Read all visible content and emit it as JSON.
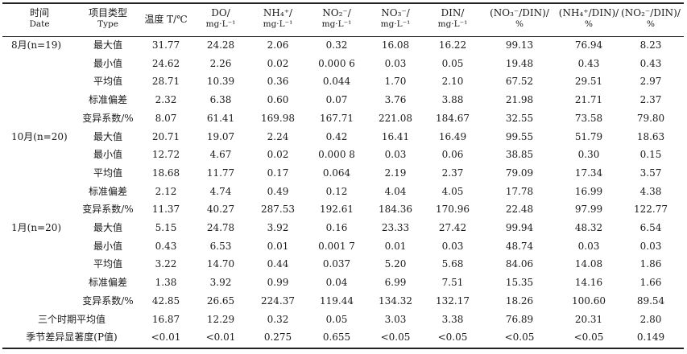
{
  "headers": [
    {
      "line1": "时间",
      "line2": "Date"
    },
    {
      "line1": "项目类型",
      "line2": "Type"
    },
    {
      "line1": "温度 T/℃",
      "line2": ""
    },
    {
      "line1": "DO/",
      "line2": "mg·L⁻¹"
    },
    {
      "line1": "NH₄⁺/",
      "line2": "mg·L⁻¹"
    },
    {
      "line1": "NO₂⁻/",
      "line2": "mg·L⁻¹"
    },
    {
      "line1": "NO₃⁻/",
      "line2": "mg·L⁻¹"
    },
    {
      "line1": "DIN/",
      "line2": "mg·L⁻¹"
    },
    {
      "line1": "(NO₃⁻/DIN)/",
      "line2": "%"
    },
    {
      "line1": "(NH₄⁺/DIN)/",
      "line2": "%"
    },
    {
      "line1": "(NO₂⁻/DIN)/",
      "line2": "%"
    }
  ],
  "groups": [
    {
      "label": "8月(n=19)",
      "rows": [
        [
          "最大值",
          "31.77",
          "24.28",
          "2.06",
          "0.32",
          "16.08",
          "16.22",
          "99.13",
          "76.94",
          "8.23"
        ],
        [
          "最小值",
          "24.62",
          "2.26",
          "0.02",
          "0.000 6",
          "0.03",
          "0.05",
          "19.48",
          "0.43",
          "0.43"
        ],
        [
          "平均值",
          "28.71",
          "10.39",
          "0.36",
          "0.044",
          "1.70",
          "2.10",
          "67.52",
          "29.51",
          "2.97"
        ],
        [
          "标准偏差",
          "2.32",
          "6.38",
          "0.60",
          "0.07",
          "3.76",
          "3.88",
          "21.98",
          "21.71",
          "2.37"
        ],
        [
          "变异系数/%",
          "8.07",
          "61.41",
          "169.98",
          "167.71",
          "221.08",
          "184.67",
          "32.55",
          "73.58",
          "79.80"
        ]
      ]
    },
    {
      "label": "10月(n=20)",
      "rows": [
        [
          "最大值",
          "20.71",
          "19.07",
          "2.24",
          "0.42",
          "16.41",
          "16.49",
          "99.55",
          "51.79",
          "18.63"
        ],
        [
          "最小值",
          "12.72",
          "4.67",
          "0.02",
          "0.000 8",
          "0.03",
          "0.06",
          "38.85",
          "0.30",
          "0.15"
        ],
        [
          "平均值",
          "18.68",
          "11.77",
          "0.17",
          "0.064",
          "2.19",
          "2.37",
          "79.09",
          "17.34",
          "3.57"
        ],
        [
          "标准偏差",
          "2.12",
          "4.74",
          "0.49",
          "0.12",
          "4.04",
          "4.05",
          "17.78",
          "16.99",
          "4.38"
        ],
        [
          "变异系数/%",
          "11.37",
          "40.27",
          "287.53",
          "192.61",
          "184.36",
          "170.96",
          "22.48",
          "97.99",
          "122.77"
        ]
      ]
    },
    {
      "label": "1月(n=20)",
      "rows": [
        [
          "最大值",
          "5.15",
          "24.78",
          "3.92",
          "0.16",
          "23.33",
          "27.42",
          "99.94",
          "48.32",
          "6.54"
        ],
        [
          "最小值",
          "0.43",
          "6.53",
          "0.01",
          "0.001 7",
          "0.01",
          "0.03",
          "48.74",
          "0.03",
          "0.03"
        ],
        [
          "平均值",
          "3.22",
          "14.70",
          "0.44",
          "0.037",
          "5.20",
          "5.68",
          "84.06",
          "14.08",
          "1.86"
        ],
        [
          "标准偏差",
          "1.38",
          "3.92",
          "0.99",
          "0.04",
          "6.99",
          "7.51",
          "15.35",
          "14.16",
          "1.66"
        ],
        [
          "变异系数/%",
          "42.85",
          "26.65",
          "224.37",
          "119.44",
          "134.32",
          "132.17",
          "18.26",
          "100.60",
          "89.54"
        ]
      ]
    }
  ],
  "footer_rows": [
    {
      "label": "三个时期平均值",
      "values": [
        "16.87",
        "12.29",
        "0.32",
        "0.05",
        "3.03",
        "3.38",
        "76.89",
        "20.31",
        "2.80"
      ]
    },
    {
      "label": "季节差异显著度(P值)",
      "values": [
        "<0.01",
        "<0.01",
        "0.275",
        "0.655",
        "<0.05",
        "<0.05",
        "<0.05",
        "<0.05",
        "0.149"
      ]
    }
  ]
}
